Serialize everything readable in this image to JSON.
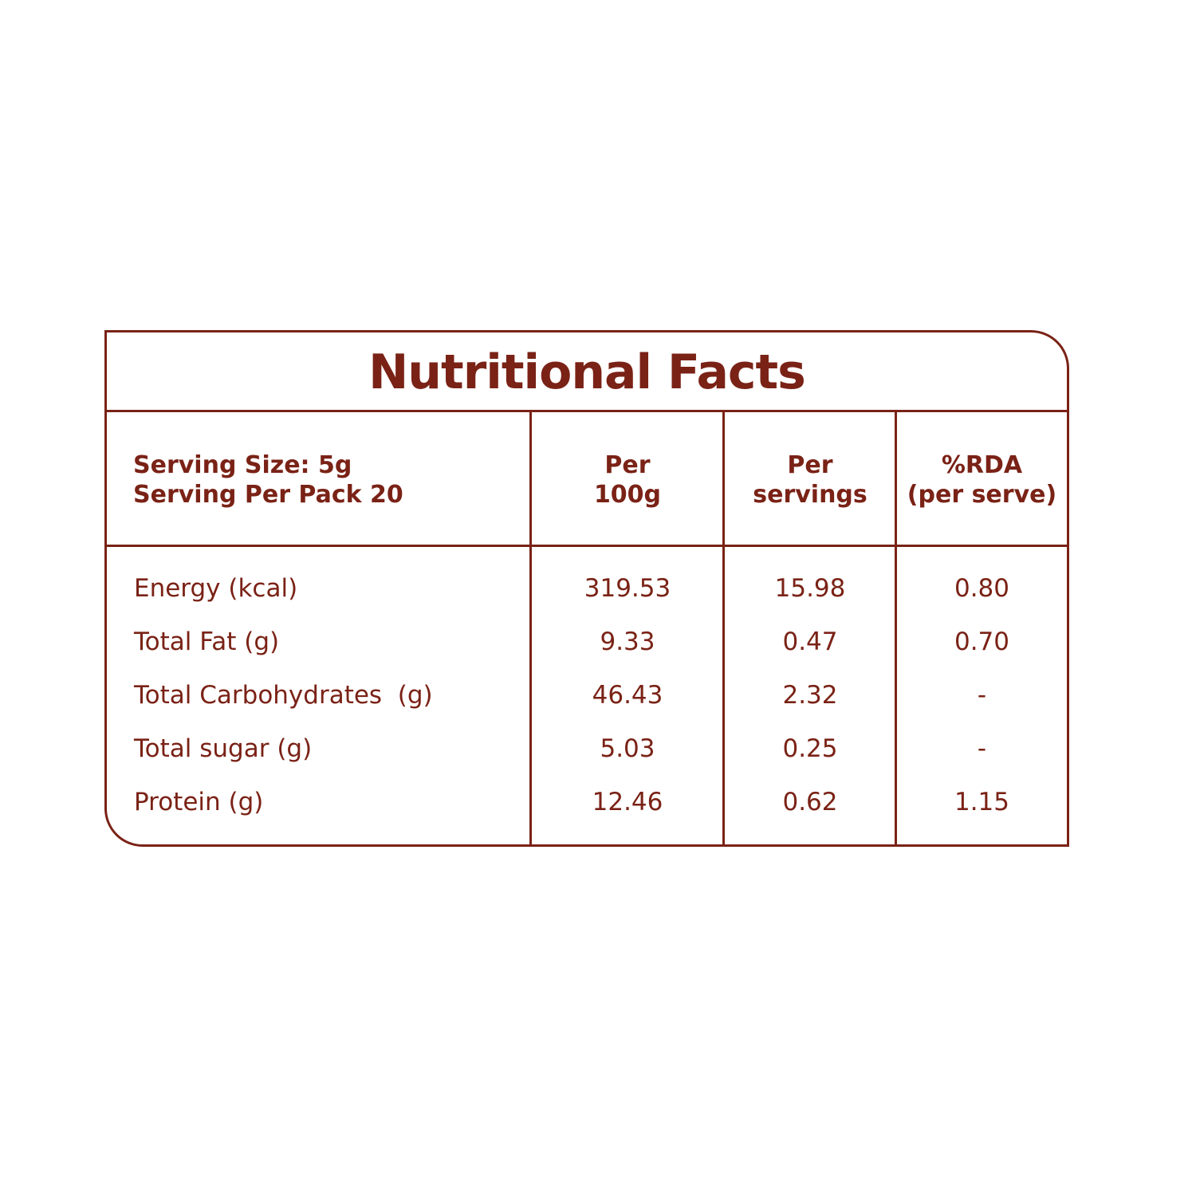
{
  "title": "Nutritional Facts",
  "header": {
    "serving_size": "Serving Size: 5g",
    "servings_per_pack": "Serving Per Pack 20",
    "col1_line1": "Per",
    "col1_line2": "100g",
    "col2_line1": "Per",
    "col2_line2": "servings",
    "col3_line1": "%RDA",
    "col3_line2": "(per serve)"
  },
  "rows": [
    {
      "name": "Energy (kcal)",
      "per_100g": "319.53",
      "per_serving": "15.98",
      "rda": "0.80"
    },
    {
      "name": "Total Fat (g)",
      "per_100g": "9.33",
      "per_serving": "0.47",
      "rda": "0.70"
    },
    {
      "name": "Total Carbohydrates  (g)",
      "per_100g": "46.43",
      "per_serving": "2.32",
      "rda": "-"
    },
    {
      "name": "Total sugar (g)",
      "per_100g": "5.03",
      "per_serving": "0.25",
      "rda": "-"
    },
    {
      "name": "Protein (g)",
      "per_100g": "12.46",
      "per_serving": "0.62",
      "rda": "1.15"
    }
  ],
  "colors": {
    "accent": "#7a2216",
    "background": "#ffffff"
  }
}
